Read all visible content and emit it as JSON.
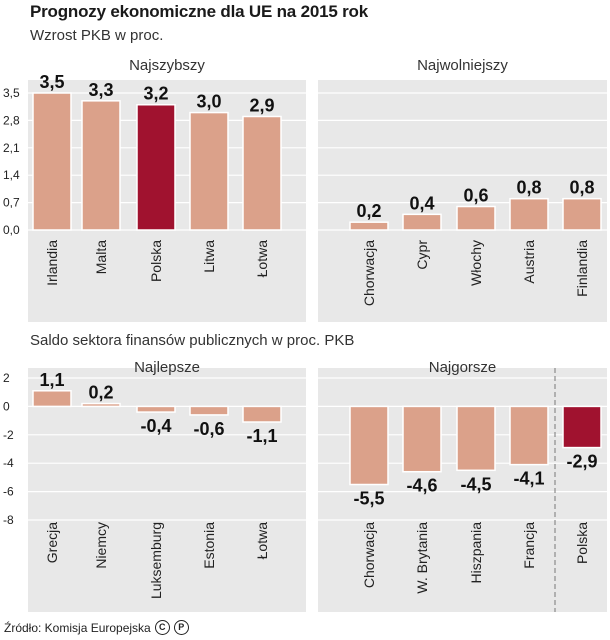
{
  "title": "Prognozy ekonomiczne dla UE na 2015 rok",
  "source": {
    "text": "Źródło: Komisja Europejska",
    "logo_c": "C",
    "logo_p": "P"
  },
  "colors": {
    "bar": "#dba18a",
    "highlight": "#a0122f",
    "panel": "#e8e8e8",
    "grid": "#ffffff",
    "border": "#ffffff"
  },
  "chart_data": [
    {
      "type": "bar",
      "title": "Wzrost PKB w proc.",
      "ylim": [
        0,
        3.5
      ],
      "yticks": [
        "3,5",
        "2,8",
        "2,1",
        "1,4",
        "0,7",
        "0,0"
      ],
      "ytick_values": [
        3.5,
        2.8,
        2.1,
        1.4,
        0.7,
        0.0
      ],
      "groups": [
        {
          "label": "Najszybszy",
          "categories": [
            "Irlandia",
            "Malta",
            "Polska",
            "Litwa",
            "Łotwa"
          ],
          "values": [
            3.5,
            3.3,
            3.2,
            3.0,
            2.9
          ],
          "labels": [
            "3,5",
            "3,3",
            "3,2",
            "3,0",
            "2,9"
          ],
          "highlight": [
            false,
            false,
            true,
            false,
            false
          ]
        },
        {
          "label": "Najwolniejszy",
          "categories": [
            "Chorwacja",
            "Cypr",
            "Włochy",
            "Austria",
            "Finlandia"
          ],
          "values": [
            0.2,
            0.4,
            0.6,
            0.8,
            0.8
          ],
          "labels": [
            "0,2",
            "0,4",
            "0,6",
            "0,8",
            "0,8"
          ],
          "highlight": [
            false,
            false,
            false,
            false,
            false
          ]
        }
      ]
    },
    {
      "type": "bar",
      "title": "Saldo sektora finansów publicznych w proc. PKB",
      "ylim": [
        -8,
        2
      ],
      "yticks": [
        "2",
        "0",
        "-2",
        "-4",
        "-6",
        "-8"
      ],
      "ytick_values": [
        2,
        0,
        -2,
        -4,
        -6,
        -8
      ],
      "groups": [
        {
          "label": "Najlepsze",
          "categories": [
            "Grecja",
            "Niemcy",
            "Luksemburg",
            "Estonia",
            "Łotwa"
          ],
          "values": [
            1.1,
            0.2,
            -0.4,
            -0.6,
            -1.1
          ],
          "labels": [
            "1,1",
            "0,2",
            "-0,4",
            "-0,6",
            "-1,1"
          ],
          "highlight": [
            false,
            false,
            false,
            false,
            false
          ]
        },
        {
          "label": "Najgorsze",
          "categories": [
            "Chorwacja",
            "W. Brytania",
            "Hiszpania",
            "Francja",
            "Polska"
          ],
          "values": [
            -5.5,
            -4.6,
            -4.5,
            -4.1,
            -2.9
          ],
          "labels": [
            "-5,5",
            "-4,6",
            "-4,5",
            "-4,1",
            "-2,9"
          ],
          "highlight": [
            false,
            false,
            false,
            false,
            true
          ]
        }
      ]
    }
  ]
}
